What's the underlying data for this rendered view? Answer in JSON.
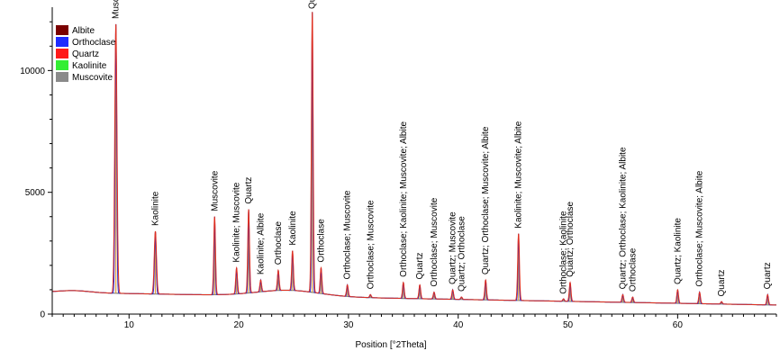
{
  "chart_data": {
    "type": "line",
    "title": "",
    "xlabel": "Position [°2Theta]",
    "ylabel": "",
    "xlim": [
      3,
      69
    ],
    "ylim": [
      0,
      12600
    ],
    "x_ticks": [
      10,
      20,
      30,
      40,
      50,
      60
    ],
    "y_ticks": [
      0,
      5000,
      10000
    ],
    "grid": false,
    "legend": {
      "placement": "top-left",
      "entries": [
        {
          "name": "Albite",
          "color": "#7a0000"
        },
        {
          "name": "Orthoclase",
          "color": "#1f2bff"
        },
        {
          "name": "Quartz",
          "color": "#ff1a1a"
        },
        {
          "name": "Kaolinite",
          "color": "#33ee33"
        },
        {
          "name": "Muscovite",
          "color": "#8a8a8a"
        }
      ]
    },
    "colors": {
      "observed_pattern": "#e03020",
      "phase_pattern": "#2626d0",
      "background": "#7a7a7a",
      "reference_sticks": "#e0a040"
    },
    "peaks": [
      {
        "x": 8.8,
        "y": 11900,
        "label": "Muscovite"
      },
      {
        "x": 12.4,
        "y": 3400,
        "label": "Kaolinite"
      },
      {
        "x": 17.8,
        "y": 4000,
        "label": "Muscovite"
      },
      {
        "x": 19.8,
        "y": 1900,
        "label": "Kaolinite; Muscovite"
      },
      {
        "x": 20.9,
        "y": 4300,
        "label": "Quartz"
      },
      {
        "x": 22.0,
        "y": 1400,
        "label": "Kaolinite; Albite"
      },
      {
        "x": 23.6,
        "y": 1800,
        "label": "Orthoclase"
      },
      {
        "x": 24.9,
        "y": 2600,
        "label": "Kaolinite"
      },
      {
        "x": 26.7,
        "y": 12400,
        "label": "Quartz; Muscovite"
      },
      {
        "x": 27.5,
        "y": 1900,
        "label": "Orthoclase"
      },
      {
        "x": 29.9,
        "y": 1200,
        "label": "Orthoclase; Muscovite"
      },
      {
        "x": 32.0,
        "y": 800,
        "label": "Orthoclase; Muscovite"
      },
      {
        "x": 35.0,
        "y": 1300,
        "label": "Orthoclase; Kaolinite; Muscovite; Albite"
      },
      {
        "x": 36.5,
        "y": 1200,
        "label": "Quartz"
      },
      {
        "x": 37.8,
        "y": 900,
        "label": "Orthoclase; Muscovite"
      },
      {
        "x": 39.5,
        "y": 1000,
        "label": "Quartz; Muscovite"
      },
      {
        "x": 40.3,
        "y": 700,
        "label": "Quartz; Orthoclase"
      },
      {
        "x": 42.5,
        "y": 1400,
        "label": "Quartz; Orthoclase; Muscovite; Albite"
      },
      {
        "x": 45.5,
        "y": 3300,
        "label": "Kaolinite; Muscovite; Albite"
      },
      {
        "x": 49.6,
        "y": 600,
        "label": "Orthoclase; Kaolinite"
      },
      {
        "x": 50.2,
        "y": 1300,
        "label": "Quartz; Orthoclase"
      },
      {
        "x": 55.0,
        "y": 800,
        "label": "Quartz; Orthoclase; Kaolinite; Albite"
      },
      {
        "x": 55.9,
        "y": 700,
        "label": "Orthoclase"
      },
      {
        "x": 60.0,
        "y": 1000,
        "label": "Quartz; Kaolinite"
      },
      {
        "x": 62.0,
        "y": 900,
        "label": "Orthoclase; Muscovite; Albite"
      },
      {
        "x": 64.0,
        "y": 500,
        "label": "Quartz"
      },
      {
        "x": 68.2,
        "y": 800,
        "label": "Quartz"
      }
    ]
  }
}
